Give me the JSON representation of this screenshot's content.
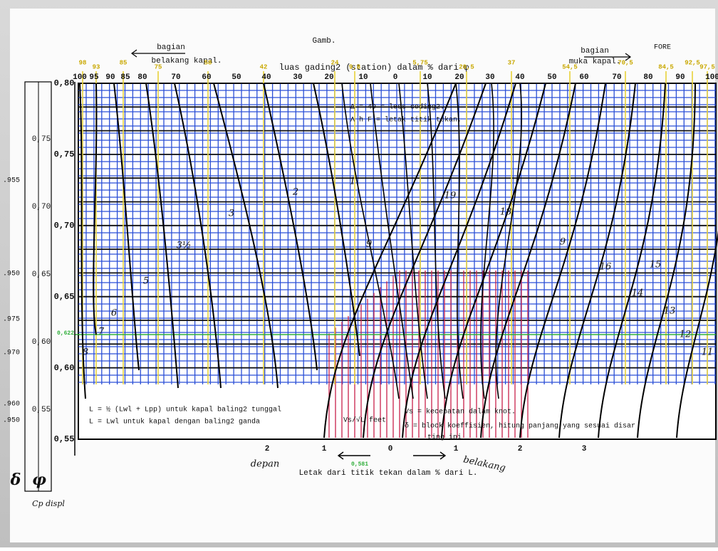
{
  "header": {
    "title": "Gamb.",
    "corner": "FORE",
    "stern_note": [
      "bagian",
      "belakang kapal."
    ],
    "bow_note": [
      "bagian",
      "muka kapal."
    ],
    "axis_title": "luas gading2 (station) dalam % dari φ"
  },
  "top_scale": [
    "100",
    "95",
    "90",
    "85",
    "80",
    "70",
    "60",
    "50",
    "40",
    "30",
    "20",
    "10",
    "0",
    "10",
    "20",
    "30",
    "40",
    "50",
    "60",
    "70",
    "80",
    "90",
    "100"
  ],
  "top_yellow_scale": [
    "98",
    "93",
    "85",
    "75",
    "58",
    "42",
    "24",
    "9,8",
    "5,75",
    "20,5",
    "37",
    "54,5",
    "70,5",
    "84,5",
    "92,5",
    "97,5"
  ],
  "phi_axis": [
    "0,80",
    "0,75",
    "0,70",
    "0,65",
    "0,60",
    "0,55"
  ],
  "outer_phi_axis": [
    "0,75",
    "0,70",
    "0,65",
    "0,60",
    "0,55"
  ],
  "delta_axis": [
    ".955",
    ".950",
    ".975",
    ".970",
    ".960",
    ".950"
  ],
  "green_mark": "0,622",
  "legend": [
    "Δ = 49 = less coding2.",
    "Λ h F = letak titik tekan."
  ],
  "notes": [
    "L = ½ (Lwl + Lpp) untuk kapal baling2 tunggal",
    "L = Lwl untuk kapal dengan baling2 ganda",
    "Vs/√L feet",
    "Vs = kecepatan dalam knot.",
    "δ = block koeffisien, hitung panjang yang sesuai disar",
    "ting ini"
  ],
  "curve_labels": [
    "1",
    "2",
    "3",
    "3½",
    "5",
    "6",
    "7",
    "8",
    "9",
    "19",
    "18",
    "9",
    "16",
    "15",
    "14",
    "13",
    "12",
    "11"
  ],
  "bottom_scale": [
    "2",
    "1",
    "0",
    "1",
    "2",
    "3"
  ],
  "bottom_green": "0,581",
  "bottom_side": [
    "depan",
    "belakang"
  ],
  "x_title": "Letak dari titik tekan dalam % dari L.",
  "left_symbols": [
    "δ",
    "φ"
  ],
  "left_caption": "Cp displ"
}
